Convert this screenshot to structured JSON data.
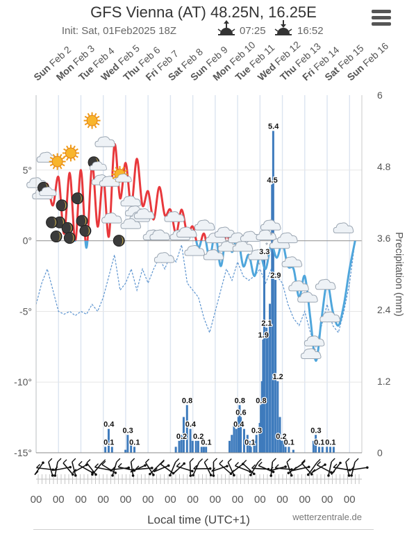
{
  "header": {
    "title": "GFS Vienna (AT) 48.25N, 16.25E",
    "init": "Init: Sat, 01Feb2025 18Z",
    "sunrise": "07:25",
    "sunset": "16:52"
  },
  "menu": {
    "icon": "hamburger-menu-icon"
  },
  "footer": {
    "xlabel": "Local time (UTC+1)",
    "credit": "wetterzentrale.de"
  },
  "chart_data": {
    "type": "line",
    "days": [
      {
        "day": "Sun",
        "date": "Feb 2"
      },
      {
        "day": "Mon",
        "date": "Feb 3"
      },
      {
        "day": "Tue",
        "date": "Feb 4"
      },
      {
        "day": "Wed",
        "date": "Feb 5"
      },
      {
        "day": "Thu",
        "date": "Feb 6"
      },
      {
        "day": "Fri",
        "date": "Feb 7"
      },
      {
        "day": "Sat",
        "date": "Feb 8"
      },
      {
        "day": "Sun",
        "date": "Feb 9"
      },
      {
        "day": "Mon",
        "date": "Feb 10"
      },
      {
        "day": "Tue",
        "date": "Feb 11"
      },
      {
        "day": "Wed",
        "date": "Feb 12"
      },
      {
        "day": "Thu",
        "date": "Feb 13"
      },
      {
        "day": "Fri",
        "date": "Feb 14"
      },
      {
        "day": "Sat",
        "date": "Feb 15"
      },
      {
        "day": "Sun",
        "date": "Feb 16"
      }
    ],
    "xticks": [
      "00",
      "00",
      "00",
      "00",
      "00",
      "00",
      "00",
      "00",
      "00",
      "00",
      "00",
      "00",
      "00",
      "00",
      "00"
    ],
    "temp_axis": {
      "ticks": [
        "5°",
        "0°",
        "-5°",
        "-10°",
        "-15°"
      ],
      "values": [
        5,
        0,
        -5,
        -10,
        -15
      ],
      "range": [
        -15,
        10.3
      ]
    },
    "precip_axis": {
      "label": "Precipitation (mm)",
      "ticks": [
        "6",
        "4.8",
        "3.6",
        "2.4",
        "1.2",
        "0"
      ],
      "values": [
        6,
        4.8,
        3.6,
        2.4,
        1.2,
        0
      ],
      "range": [
        0,
        6
      ]
    },
    "temperature": [
      [
        0,
        3
      ],
      [
        0.25,
        3.5
      ],
      [
        0.5,
        4
      ],
      [
        0.75,
        2.5
      ],
      [
        1,
        4.5
      ],
      [
        1.25,
        0.5
      ],
      [
        1.5,
        4.8
      ],
      [
        1.75,
        0
      ],
      [
        2,
        5
      ],
      [
        2.25,
        -0.5
      ],
      [
        2.5,
        5.4
      ],
      [
        2.75,
        1
      ],
      [
        3,
        4.5
      ],
      [
        3.25,
        0.3
      ],
      [
        3.5,
        6.8
      ],
      [
        3.75,
        3
      ],
      [
        4,
        5.5
      ],
      [
        4.25,
        2.5
      ],
      [
        4.5,
        5.8
      ],
      [
        4.75,
        2.5
      ],
      [
        5,
        3.5
      ],
      [
        5.25,
        1.5
      ],
      [
        5.5,
        3.8
      ],
      [
        5.75,
        1.8
      ],
      [
        6,
        2.2
      ],
      [
        6.25,
        0.5
      ],
      [
        6.5,
        2.2
      ],
      [
        6.75,
        0.5
      ],
      [
        7,
        1
      ],
      [
        7.25,
        -0.5
      ],
      [
        7.5,
        0.5
      ],
      [
        7.75,
        -1.2
      ],
      [
        8,
        0.5
      ],
      [
        8.25,
        -1.8
      ],
      [
        8.5,
        0.5
      ],
      [
        8.75,
        -0.8
      ],
      [
        9,
        0.3
      ],
      [
        9.25,
        -1.8
      ],
      [
        9.5,
        -1
      ],
      [
        9.75,
        -2.5
      ],
      [
        10,
        -1
      ],
      [
        10.25,
        -2
      ],
      [
        10.5,
        -0.3
      ],
      [
        10.75,
        -1.2
      ],
      [
        11,
        -0.2
      ],
      [
        11.25,
        -1.8
      ],
      [
        11.5,
        -2
      ],
      [
        11.75,
        -4
      ],
      [
        12,
        -2.5
      ],
      [
        12.25,
        -5.5
      ],
      [
        12.5,
        -8.5
      ],
      [
        12.75,
        -5.5
      ],
      [
        13,
        -3
      ],
      [
        13.25,
        -5
      ],
      [
        13.5,
        -6
      ],
      [
        13.75,
        -4.5
      ],
      [
        14,
        -2
      ],
      [
        14.25,
        0
      ]
    ],
    "dewpoint": [
      [
        0,
        -4.5
      ],
      [
        0.25,
        -3
      ],
      [
        0.5,
        -2
      ],
      [
        0.75,
        -3.5
      ],
      [
        1,
        -5
      ],
      [
        1.25,
        -5.2
      ],
      [
        1.5,
        -5
      ],
      [
        1.75,
        -5.3
      ],
      [
        2,
        -5
      ],
      [
        2.25,
        -5.2
      ],
      [
        2.5,
        -4.5
      ],
      [
        2.75,
        -5
      ],
      [
        3,
        -4
      ],
      [
        3.25,
        -2.5
      ],
      [
        3.5,
        -1
      ],
      [
        3.75,
        -3.5
      ],
      [
        4,
        -3
      ],
      [
        4.25,
        -2
      ],
      [
        4.5,
        -3.5
      ],
      [
        4.75,
        -2
      ],
      [
        5,
        -3
      ],
      [
        5.25,
        -2
      ],
      [
        5.5,
        -1.2
      ],
      [
        5.75,
        -2
      ],
      [
        6,
        -1
      ],
      [
        6.25,
        -1.5
      ],
      [
        6.5,
        -0.3
      ],
      [
        6.75,
        -3
      ],
      [
        7,
        -3.5
      ],
      [
        7.25,
        -4
      ],
      [
        7.5,
        -5.5
      ],
      [
        7.75,
        -6.5
      ],
      [
        8,
        -5
      ],
      [
        8.25,
        -3.5
      ],
      [
        8.5,
        -2
      ],
      [
        8.75,
        -2.8
      ],
      [
        9,
        -1.5
      ],
      [
        9.25,
        -2.5
      ],
      [
        9.5,
        -2.8
      ],
      [
        9.75,
        -2.5
      ],
      [
        10,
        -2
      ],
      [
        10.25,
        -3
      ],
      [
        10.5,
        -2
      ],
      [
        10.75,
        -2.5
      ],
      [
        11,
        -3
      ],
      [
        11.25,
        -4.5
      ],
      [
        11.5,
        -5.5
      ],
      [
        11.75,
        -6
      ],
      [
        12,
        -5
      ],
      [
        12.25,
        -6.5
      ],
      [
        12.5,
        -7.5
      ],
      [
        12.75,
        -6
      ],
      [
        13,
        -4.5
      ],
      [
        13.25,
        -6
      ],
      [
        13.5,
        -6.5
      ],
      [
        13.75,
        -5
      ],
      [
        14,
        -3
      ],
      [
        14.25,
        0
      ]
    ],
    "precipitation": [
      [
        3.1,
        0.1
      ],
      [
        3.25,
        0.4
      ],
      [
        3.4,
        0.1
      ],
      [
        4.0,
        0.05
      ],
      [
        4.1,
        0.3
      ],
      [
        4.25,
        0.2
      ],
      [
        4.4,
        0.1
      ],
      [
        6.25,
        0.1
      ],
      [
        6.4,
        0.2
      ],
      [
        6.5,
        0.3
      ],
      [
        6.6,
        0.6
      ],
      [
        6.75,
        0.8
      ],
      [
        6.9,
        0.4
      ],
      [
        7.0,
        0.2
      ],
      [
        7.15,
        0.2
      ],
      [
        7.25,
        0.2
      ],
      [
        7.4,
        0.1
      ],
      [
        7.5,
        0.1
      ],
      [
        7.6,
        0.1
      ],
      [
        8.65,
        0.2
      ],
      [
        8.75,
        0.3
      ],
      [
        8.85,
        0.5
      ],
      [
        8.95,
        0.4
      ],
      [
        9.05,
        0.6
      ],
      [
        9.1,
        0.8
      ],
      [
        9.15,
        0.6
      ],
      [
        9.3,
        0.4
      ],
      [
        9.45,
        0.3
      ],
      [
        9.55,
        0.2
      ],
      [
        9.6,
        0.1
      ],
      [
        9.75,
        0.2
      ],
      [
        9.85,
        0.3
      ],
      [
        10.0,
        0.5
      ],
      [
        10.05,
        0.8
      ],
      [
        10.1,
        1.2
      ],
      [
        10.15,
        1.9
      ],
      [
        10.2,
        3.3
      ],
      [
        10.3,
        2.1
      ],
      [
        10.35,
        2.0
      ],
      [
        10.45,
        2.5
      ],
      [
        10.55,
        4.5
      ],
      [
        10.6,
        5.4
      ],
      [
        10.7,
        2.9
      ],
      [
        10.8,
        1.2
      ],
      [
        10.9,
        0.6
      ],
      [
        10.95,
        0.2
      ],
      [
        11.05,
        0.2
      ],
      [
        11.15,
        0.1
      ],
      [
        11.3,
        0.1
      ],
      [
        11.5,
        0.05
      ],
      [
        12.4,
        0.2
      ],
      [
        12.5,
        0.3
      ],
      [
        12.65,
        0.1
      ],
      [
        12.8,
        0.1
      ],
      [
        13.0,
        0.1
      ],
      [
        13.15,
        0.1
      ],
      [
        13.3,
        0.1
      ]
    ],
    "bar_labels": [
      {
        "x": 3.25,
        "v": 0.4,
        "text": "0.4"
      },
      {
        "x": 3.25,
        "v": 0.1,
        "text": "0.1"
      },
      {
        "x": 4.1,
        "v": 0.3,
        "text": "0.3"
      },
      {
        "x": 4.4,
        "v": 0.1,
        "text": "0.1"
      },
      {
        "x": 6.75,
        "v": 0.8,
        "text": "0.8"
      },
      {
        "x": 6.9,
        "v": 0.4,
        "text": "0.4"
      },
      {
        "x": 6.5,
        "v": 0.2,
        "text": "0.2"
      },
      {
        "x": 7.25,
        "v": 0.2,
        "text": "0.2"
      },
      {
        "x": 7.6,
        "v": 0.1,
        "text": "0.1"
      },
      {
        "x": 9.1,
        "v": 0.8,
        "text": "0.8"
      },
      {
        "x": 9.15,
        "v": 0.6,
        "text": "0.6"
      },
      {
        "x": 9.05,
        "v": 0.4,
        "text": "0.4"
      },
      {
        "x": 9.55,
        "v": 0.1,
        "text": "0.1"
      },
      {
        "x": 9.85,
        "v": 0.3,
        "text": "0.3"
      },
      {
        "x": 10.05,
        "v": 0.8,
        "text": "0.8"
      },
      {
        "x": 10.15,
        "v": 1.9,
        "text": "1.9"
      },
      {
        "x": 10.3,
        "v": 2.1,
        "text": "2.1"
      },
      {
        "x": 10.2,
        "v": 3.3,
        "text": "3.3"
      },
      {
        "x": 10.55,
        "v": 4.5,
        "text": "4.5"
      },
      {
        "x": 10.6,
        "v": 5.4,
        "text": "5.4"
      },
      {
        "x": 10.7,
        "v": 2.9,
        "text": "2.9"
      },
      {
        "x": 10.8,
        "v": 1.2,
        "text": "1.2"
      },
      {
        "x": 10.95,
        "v": 0.2,
        "text": "0.2"
      },
      {
        "x": 11.3,
        "v": 0.1,
        "text": "0.1"
      },
      {
        "x": 12.5,
        "v": 0.3,
        "text": "0.3"
      },
      {
        "x": 12.65,
        "v": 0.1,
        "text": "0.1"
      },
      {
        "x": 13.15,
        "v": 0.1,
        "text": "0.1"
      }
    ],
    "weather_icons": [
      {
        "x": 0.05,
        "t": 4,
        "icon": "cloud-icon"
      },
      {
        "x": 0.3,
        "t": 3.2,
        "icon": "cloud-icon"
      },
      {
        "x": 0.5,
        "t": 5.8,
        "icon": "cloud-icon"
      },
      {
        "x": 0.45,
        "t": 3.5,
        "icon": "moon-cloud-icon"
      },
      {
        "x": 0.95,
        "t": 5.6,
        "icon": "sun-icon"
      },
      {
        "x": 1.15,
        "t": 2.5,
        "icon": "moon-icon"
      },
      {
        "x": 1.05,
        "t": 1.3,
        "icon": "moon-icon"
      },
      {
        "x": 0.9,
        "t": 0.3,
        "icon": "moon-icon"
      },
      {
        "x": 0.7,
        "t": 1.3,
        "icon": "moon-icon"
      },
      {
        "x": 1.55,
        "t": 6.2,
        "icon": "sun-icon"
      },
      {
        "x": 1.4,
        "t": 0.9,
        "icon": "moon-icon"
      },
      {
        "x": 1.5,
        "t": 0.2,
        "icon": "moon-icon"
      },
      {
        "x": 1.85,
        "t": 3,
        "icon": "moon-icon"
      },
      {
        "x": 2.05,
        "t": 1.4,
        "icon": "moon-icon"
      },
      {
        "x": 2.2,
        "t": 0.7,
        "icon": "moon-icon"
      },
      {
        "x": 2.5,
        "t": 8.5,
        "icon": "sun-icon"
      },
      {
        "x": 2.7,
        "t": 5.3,
        "icon": "moon-cloud-icon"
      },
      {
        "x": 3.1,
        "t": 6.9,
        "icon": "cloud-icon"
      },
      {
        "x": 2.95,
        "t": 4.2,
        "icon": "cloud-icon"
      },
      {
        "x": 3.3,
        "t": 4.1,
        "icon": "cloud-icon"
      },
      {
        "x": 3.8,
        "t": 4.5,
        "icon": "sun-cloud-icon"
      },
      {
        "x": 3.7,
        "t": 0,
        "icon": "moon-icon"
      },
      {
        "x": 3.4,
        "t": 1.5,
        "icon": "cloud-icon"
      },
      {
        "x": 4.25,
        "t": 2.7,
        "icon": "cloud-icon"
      },
      {
        "x": 4.45,
        "t": 2,
        "icon": "cloud-icon"
      },
      {
        "x": 4.65,
        "t": 1.6,
        "icon": "cloud-icon"
      },
      {
        "x": 4.85,
        "t": 1.8,
        "icon": "cloud-icon"
      },
      {
        "x": 4.25,
        "t": 1.1,
        "icon": "cloud-icon"
      },
      {
        "x": 5.25,
        "t": 0.3,
        "icon": "cloud-icon"
      },
      {
        "x": 5.55,
        "t": 0.3,
        "icon": "cloud-icon"
      },
      {
        "x": 5.75,
        "t": -1.3,
        "icon": "cloud-icon"
      },
      {
        "x": 6.2,
        "t": 1.6,
        "icon": "cloud-icon"
      },
      {
        "x": 6.45,
        "t": 0.3,
        "icon": "cloud-icon"
      },
      {
        "x": 6.75,
        "t": 0.5,
        "icon": "cloud-icon"
      },
      {
        "x": 7.1,
        "t": -0.8,
        "icon": "cloud-icon"
      },
      {
        "x": 7.55,
        "t": 1,
        "icon": "cloud-icon"
      },
      {
        "x": 7.95,
        "t": -1.1,
        "icon": "cloud-icon"
      },
      {
        "x": 8.05,
        "t": 0.1,
        "icon": "cloud-icon"
      },
      {
        "x": 8.45,
        "t": 0.5,
        "icon": "cloud-icon"
      },
      {
        "x": 8.6,
        "t": -0.5,
        "icon": "cloud-icon"
      },
      {
        "x": 9.05,
        "t": 0.1,
        "icon": "cloud-icon"
      },
      {
        "x": 9.25,
        "t": -0.5,
        "icon": "cloud-icon"
      },
      {
        "x": 9.6,
        "t": 0.2,
        "icon": "cloud-icon"
      },
      {
        "x": 9.95,
        "t": -1.1,
        "icon": "snow-cloud-icon"
      },
      {
        "x": 10.3,
        "t": 0.3,
        "icon": "snow-cloud-icon"
      },
      {
        "x": 10.5,
        "t": 1,
        "icon": "snow-cloud-icon"
      },
      {
        "x": 10.9,
        "t": -0.3,
        "icon": "cloud-icon"
      },
      {
        "x": 11.25,
        "t": 0.1,
        "icon": "cloud-icon"
      },
      {
        "x": 11.45,
        "t": -1.6,
        "icon": "cloud-icon"
      },
      {
        "x": 11.75,
        "t": -3.3,
        "icon": "cloud-icon"
      },
      {
        "x": 12.15,
        "t": -4.1,
        "icon": "cloud-icon"
      },
      {
        "x": 12.45,
        "t": -7.2,
        "icon": "snow-cloud-icon"
      },
      {
        "x": 12.3,
        "t": -8.1,
        "icon": "cloud-icon"
      },
      {
        "x": 12.95,
        "t": -3.2,
        "icon": "cloud-icon"
      },
      {
        "x": 13.15,
        "t": -5.5,
        "icon": "cloud-icon"
      },
      {
        "x": 13.75,
        "t": 0.8,
        "icon": "cloud-icon"
      }
    ]
  }
}
